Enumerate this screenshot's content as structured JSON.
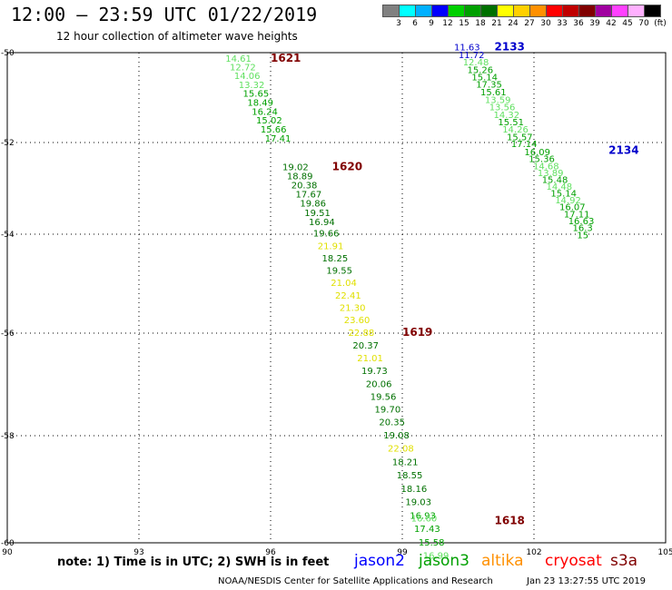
{
  "header": {
    "title": "12:00 – 23:59 UTC 01/22/2019",
    "subtitle": "12 hour collection of altimeter wave heights"
  },
  "colorbar": {
    "colors": [
      "#808080",
      "#00ffff",
      "#00b0ff",
      "#0000ff",
      "#00d000",
      "#00a000",
      "#007000",
      "#ffff00",
      "#ffd000",
      "#ff9000",
      "#ff0000",
      "#c00000",
      "#800000",
      "#a000a0",
      "#ff40ff",
      "#ffb0ff",
      "#000000"
    ],
    "labels": [
      "3",
      "6",
      "9",
      "12",
      "15",
      "18",
      "21",
      "24",
      "27",
      "30",
      "33",
      "36",
      "39",
      "42",
      "45",
      "70",
      "(ft)"
    ]
  },
  "axes": {
    "x_ticks": [
      "90",
      "93",
      "96",
      "99",
      "102",
      "105"
    ],
    "y_ticks": [
      "-50",
      "-52",
      "-54",
      "-56",
      "-58",
      "-60"
    ]
  },
  "passes": [
    {
      "label": "1621",
      "lon": 96.0,
      "lat": -50.2,
      "color": "#800000"
    },
    {
      "label": "1620",
      "lon": 97.4,
      "lat": -52.6,
      "color": "#800000"
    },
    {
      "label": "1619",
      "lon": 99.0,
      "lat": -56.05,
      "color": "#800000"
    },
    {
      "label": "1618",
      "lon": 101.1,
      "lat": -59.65,
      "color": "#800000"
    },
    {
      "label": "2133",
      "lon": 101.1,
      "lat": -49.95,
      "color": "#0000cc"
    },
    {
      "label": "2134",
      "lon": 103.7,
      "lat": -52.25,
      "color": "#0000cc"
    }
  ],
  "tracks": [
    {
      "name": "track-1618-1621",
      "points": [
        {
          "v": "14.61",
          "lon": 94.97,
          "lat": -50.2,
          "c": "#60e060"
        },
        {
          "v": "12.72",
          "lon": 95.07,
          "lat": -50.39,
          "c": "#60e060"
        },
        {
          "v": "14.06",
          "lon": 95.17,
          "lat": -50.59,
          "c": "#60e060"
        },
        {
          "v": "13.32",
          "lon": 95.27,
          "lat": -50.79,
          "c": "#60e060"
        },
        {
          "v": "15.65",
          "lon": 95.37,
          "lat": -50.98,
          "c": "#00a000"
        },
        {
          "v": "18.49",
          "lon": 95.47,
          "lat": -51.18,
          "c": "#00a000"
        },
        {
          "v": "16.24",
          "lon": 95.57,
          "lat": -51.38,
          "c": "#00a000"
        },
        {
          "v": "15.02",
          "lon": 95.67,
          "lat": -51.58,
          "c": "#00a000"
        },
        {
          "v": "15.66",
          "lon": 95.77,
          "lat": -51.78,
          "c": "#00a000"
        },
        {
          "v": "17.41",
          "lon": 95.87,
          "lat": -51.98,
          "c": "#00a000"
        },
        {
          "v": "19.02",
          "lon": 96.27,
          "lat": -52.6,
          "c": "#007000"
        },
        {
          "v": "18.89",
          "lon": 96.37,
          "lat": -52.8,
          "c": "#007000"
        },
        {
          "v": "20.38",
          "lon": 96.47,
          "lat": -53.0,
          "c": "#007000"
        },
        {
          "v": "17.67",
          "lon": 96.57,
          "lat": -53.2,
          "c": "#007000"
        },
        {
          "v": "19.86",
          "lon": 96.67,
          "lat": -53.4,
          "c": "#007000"
        },
        {
          "v": "19.51",
          "lon": 96.77,
          "lat": -53.6,
          "c": "#007000"
        },
        {
          "v": "16.94",
          "lon": 96.87,
          "lat": -53.8,
          "c": "#007000"
        },
        {
          "v": "19.66",
          "lon": 96.97,
          "lat": -54.05,
          "c": "#007000"
        },
        {
          "v": "21.91",
          "lon": 97.07,
          "lat": -54.3,
          "c": "#e0e000"
        },
        {
          "v": "18.25",
          "lon": 97.17,
          "lat": -54.55,
          "c": "#007000"
        },
        {
          "v": "19.55",
          "lon": 97.27,
          "lat": -54.8,
          "c": "#007000"
        },
        {
          "v": "21.04",
          "lon": 97.37,
          "lat": -55.05,
          "c": "#e0e000"
        },
        {
          "v": "22.41",
          "lon": 97.47,
          "lat": -55.3,
          "c": "#e0e000"
        },
        {
          "v": "21.30",
          "lon": 97.57,
          "lat": -55.55,
          "c": "#e0e000"
        },
        {
          "v": "23.60",
          "lon": 97.67,
          "lat": -55.8,
          "c": "#e0e000"
        },
        {
          "v": "22.88",
          "lon": 97.77,
          "lat": -56.05,
          "c": "#e0e000"
        },
        {
          "v": "20.37",
          "lon": 97.87,
          "lat": -56.3,
          "c": "#007000"
        },
        {
          "v": "21.01",
          "lon": 97.97,
          "lat": -56.55,
          "c": "#e0e000"
        },
        {
          "v": "19.73",
          "lon": 98.07,
          "lat": -56.8,
          "c": "#007000"
        },
        {
          "v": "20.06",
          "lon": 98.17,
          "lat": -57.05,
          "c": "#007000"
        },
        {
          "v": "19.56",
          "lon": 98.27,
          "lat": -57.3,
          "c": "#007000"
        },
        {
          "v": "19.70",
          "lon": 98.37,
          "lat": -57.55,
          "c": "#007000"
        },
        {
          "v": "20.35",
          "lon": 98.47,
          "lat": -57.8,
          "c": "#007000"
        },
        {
          "v": "19.08",
          "lon": 98.57,
          "lat": -58.05,
          "c": "#007000"
        },
        {
          "v": "22.08",
          "lon": 98.67,
          "lat": -58.3,
          "c": "#e0e000"
        },
        {
          "v": "18.21",
          "lon": 98.77,
          "lat": -58.55,
          "c": "#007000"
        },
        {
          "v": "18.55",
          "lon": 98.87,
          "lat": -58.8,
          "c": "#007000"
        },
        {
          "v": "18.16",
          "lon": 98.97,
          "lat": -59.05,
          "c": "#007000"
        },
        {
          "v": "19.03",
          "lon": 99.07,
          "lat": -59.3,
          "c": "#007000"
        },
        {
          "v": "16.93",
          "lon": 99.17,
          "lat": -59.55,
          "c": "#00a000"
        },
        {
          "v": "16.60",
          "lon": 99.2,
          "lat": -59.6,
          "c": "#60e060"
        },
        {
          "v": "17.43",
          "lon": 99.27,
          "lat": -59.8,
          "c": "#00a000"
        },
        {
          "v": "15.58",
          "lon": 99.37,
          "lat": -60.05,
          "c": "#00a000"
        },
        {
          "v": "16.99",
          "lon": 99.47,
          "lat": -60.3,
          "c": "#60e060"
        }
      ]
    },
    {
      "name": "track-2133-2134",
      "points": [
        {
          "v": "11.63",
          "lon": 100.18,
          "lat": -49.95,
          "c": "#0000cc"
        },
        {
          "v": "11.72",
          "lon": 100.28,
          "lat": -50.12,
          "c": "#0000cc"
        },
        {
          "v": "12.48",
          "lon": 100.38,
          "lat": -50.28,
          "c": "#60e060"
        },
        {
          "v": "15.26",
          "lon": 100.48,
          "lat": -50.45,
          "c": "#00a000"
        },
        {
          "v": "15.14",
          "lon": 100.58,
          "lat": -50.62,
          "c": "#00a000"
        },
        {
          "v": "17.35",
          "lon": 100.68,
          "lat": -50.78,
          "c": "#00a000"
        },
        {
          "v": "15.61",
          "lon": 100.78,
          "lat": -50.95,
          "c": "#00a000"
        },
        {
          "v": "13.59",
          "lon": 100.88,
          "lat": -51.12,
          "c": "#60e060"
        },
        {
          "v": "13.56",
          "lon": 100.98,
          "lat": -51.28,
          "c": "#60e060"
        },
        {
          "v": "14.32",
          "lon": 101.08,
          "lat": -51.45,
          "c": "#60e060"
        },
        {
          "v": "15.51",
          "lon": 101.18,
          "lat": -51.62,
          "c": "#00a000"
        },
        {
          "v": "14.26",
          "lon": 101.28,
          "lat": -51.78,
          "c": "#60e060"
        },
        {
          "v": "15.57",
          "lon": 101.38,
          "lat": -51.95,
          "c": "#00a000"
        },
        {
          "v": "17.14",
          "lon": 101.48,
          "lat": -52.1,
          "c": "#00a000"
        },
        {
          "v": "16.09",
          "lon": 101.78,
          "lat": -52.28,
          "c": "#00a000"
        },
        {
          "v": "15.36",
          "lon": 101.88,
          "lat": -52.43,
          "c": "#00a000"
        },
        {
          "v": "14.68",
          "lon": 101.98,
          "lat": -52.58,
          "c": "#60e060"
        },
        {
          "v": "13.89",
          "lon": 102.08,
          "lat": -52.73,
          "c": "#60e060"
        },
        {
          "v": "15.48",
          "lon": 102.18,
          "lat": -52.88,
          "c": "#00a000"
        },
        {
          "v": "14.48",
          "lon": 102.28,
          "lat": -53.03,
          "c": "#60e060"
        },
        {
          "v": "15.14",
          "lon": 102.38,
          "lat": -53.18,
          "c": "#00a000"
        },
        {
          "v": "14.92",
          "lon": 102.48,
          "lat": -53.33,
          "c": "#60e060"
        },
        {
          "v": "16.07",
          "lon": 102.58,
          "lat": -53.48,
          "c": "#00a000"
        },
        {
          "v": "17.11",
          "lon": 102.68,
          "lat": -53.63,
          "c": "#00a000"
        },
        {
          "v": "16.63",
          "lon": 102.78,
          "lat": -53.78,
          "c": "#00a000"
        },
        {
          "v": "16.3",
          "lon": 102.88,
          "lat": -53.93,
          "c": "#00a000"
        },
        {
          "v": "15",
          "lon": 102.98,
          "lat": -54.08,
          "c": "#00a000"
        }
      ]
    }
  ],
  "note": "note:  1) Time is in UTC;  2) SWH is in feet",
  "satellites": [
    {
      "label": "jason2",
      "color": "#0000ff"
    },
    {
      "label": "jason3",
      "color": "#00a000"
    },
    {
      "label": "altika",
      "color": "#ff9000"
    },
    {
      "label": "cryosat",
      "color": "#ff0000"
    },
    {
      "label": "s3a",
      "color": "#800000"
    }
  ],
  "footer": {
    "agency": "NOAA/NESDIS Center for Satellite Applications and Research",
    "timestamp": "Jan 23 13:27:55 UTC 2019"
  }
}
